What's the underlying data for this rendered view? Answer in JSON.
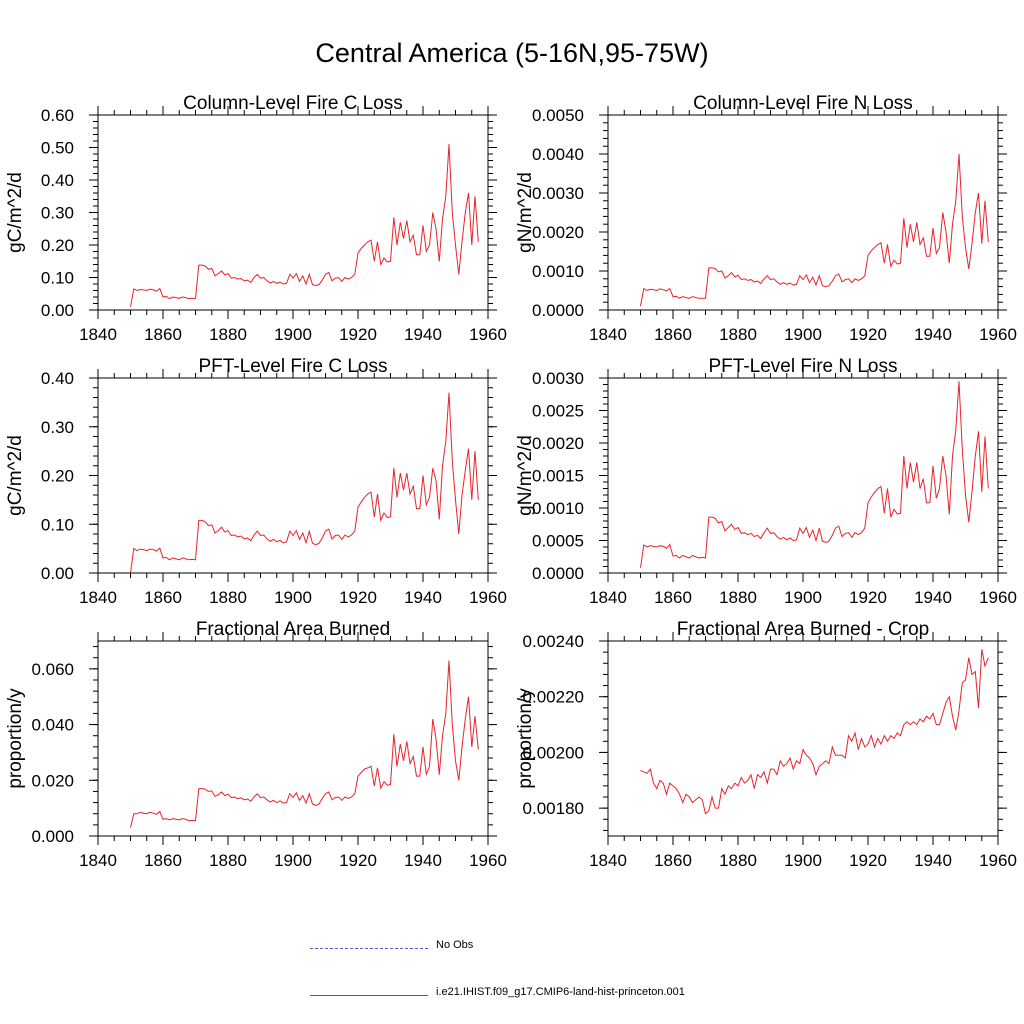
{
  "figure": {
    "title": "Central America (5-16N,95-75W)",
    "colors": {
      "model": "#e8232a",
      "obs": "#5a5acd",
      "axis": "#000000"
    }
  },
  "legend": [
    {
      "label": "No Obs",
      "style": "dashed",
      "color": "#5a5acd"
    },
    {
      "label": "i.e21.IHIST.f09_g17.CMIP6-land-hist-princeton.001",
      "style": "solid",
      "color": "#e8232a"
    }
  ],
  "chart_data": [
    {
      "type": "line",
      "title": "Column-Level Fire C Loss",
      "ylabel": "gC/m^2/d",
      "xlim": [
        1840,
        1960
      ],
      "ylim": [
        0,
        0.6
      ],
      "xticks": [
        "1840",
        "1860",
        "1880",
        "1900",
        "1920",
        "1940",
        "1960"
      ],
      "yticks": [
        {
          "v": 0.0,
          "label": "0.00"
        },
        {
          "v": 0.1,
          "label": "0.10"
        },
        {
          "v": 0.2,
          "label": "0.20"
        },
        {
          "v": 0.3,
          "label": "0.30"
        },
        {
          "v": 0.4,
          "label": "0.40"
        },
        {
          "v": 0.5,
          "label": "0.50"
        },
        {
          "v": 0.6,
          "label": "0.60"
        }
      ],
      "x_start": 1850,
      "values": [
        0.01,
        0.065,
        0.06,
        0.063,
        0.062,
        0.06,
        0.064,
        0.062,
        0.058,
        0.066,
        0.04,
        0.042,
        0.035,
        0.04,
        0.038,
        0.036,
        0.04,
        0.038,
        0.035,
        0.036,
        0.035,
        0.138,
        0.138,
        0.135,
        0.125,
        0.128,
        0.105,
        0.112,
        0.12,
        0.108,
        0.112,
        0.098,
        0.1,
        0.095,
        0.097,
        0.09,
        0.092,
        0.085,
        0.1,
        0.11,
        0.098,
        0.1,
        0.09,
        0.083,
        0.088,
        0.082,
        0.086,
        0.08,
        0.082,
        0.11,
        0.098,
        0.112,
        0.088,
        0.105,
        0.08,
        0.11,
        0.078,
        0.075,
        0.078,
        0.092,
        0.11,
        0.115,
        0.09,
        0.098,
        0.1,
        0.088,
        0.1,
        0.095,
        0.1,
        0.11,
        0.175,
        0.19,
        0.2,
        0.21,
        0.215,
        0.15,
        0.21,
        0.14,
        0.16,
        0.148,
        0.15,
        0.285,
        0.2,
        0.27,
        0.22,
        0.275,
        0.21,
        0.23,
        0.17,
        0.17,
        0.26,
        0.18,
        0.2,
        0.3,
        0.25,
        0.15,
        0.28,
        0.35,
        0.51,
        0.3,
        0.2,
        0.11,
        0.21,
        0.3,
        0.36,
        0.2,
        0.35,
        0.21
      ]
    },
    {
      "type": "line",
      "title": "Column-Level Fire N Loss",
      "ylabel": "gN/m^2/d",
      "xlim": [
        1840,
        1960
      ],
      "ylim": [
        0,
        0.005
      ],
      "xticks": [
        "1840",
        "1860",
        "1880",
        "1900",
        "1920",
        "1940",
        "1960"
      ],
      "yticks": [
        {
          "v": 0.0,
          "label": "0.0000"
        },
        {
          "v": 0.001,
          "label": "0.0010"
        },
        {
          "v": 0.002,
          "label": "0.0020"
        },
        {
          "v": 0.003,
          "label": "0.0030"
        },
        {
          "v": 0.004,
          "label": "0.0040"
        },
        {
          "v": 0.005,
          "label": "0.0050"
        }
      ],
      "x_start": 1850,
      "values": [
        0.0001,
        0.00055,
        0.0005,
        0.00053,
        0.00052,
        0.0005,
        0.00054,
        0.00052,
        0.00049,
        0.00055,
        0.00034,
        0.00035,
        0.0003,
        0.00034,
        0.00032,
        0.0003,
        0.00034,
        0.00032,
        0.0003,
        0.0003,
        0.0003,
        0.00108,
        0.00108,
        0.00106,
        0.00098,
        0.001,
        0.00082,
        0.00088,
        0.00096,
        0.00085,
        0.00089,
        0.00078,
        0.0008,
        0.00076,
        0.00078,
        0.00072,
        0.00074,
        0.00068,
        0.0008,
        0.00088,
        0.00078,
        0.0008,
        0.00072,
        0.00066,
        0.0007,
        0.00066,
        0.00069,
        0.00064,
        0.00066,
        0.00088,
        0.00078,
        0.0009,
        0.0007,
        0.00084,
        0.00064,
        0.00088,
        0.00062,
        0.0006,
        0.00062,
        0.00074,
        0.00088,
        0.00092,
        0.00072,
        0.00078,
        0.0008,
        0.0007,
        0.0008,
        0.00076,
        0.0008,
        0.00088,
        0.0014,
        0.00152,
        0.0016,
        0.00168,
        0.00172,
        0.0012,
        0.00168,
        0.00112,
        0.00128,
        0.00118,
        0.0012,
        0.00235,
        0.0016,
        0.0022,
        0.00175,
        0.00225,
        0.00168,
        0.00185,
        0.00138,
        0.00138,
        0.0021,
        0.00145,
        0.0016,
        0.0025,
        0.002,
        0.0012,
        0.0022,
        0.0028,
        0.004,
        0.0024,
        0.0016,
        0.00105,
        0.0017,
        0.0025,
        0.003,
        0.0017,
        0.0028,
        0.00175
      ]
    },
    {
      "type": "line",
      "title": "PFT-Level Fire C Loss",
      "ylabel": "gC/m^2/d",
      "xlim": [
        1840,
        1960
      ],
      "ylim": [
        0,
        0.4
      ],
      "xticks": [
        "1840",
        "1860",
        "1880",
        "1900",
        "1920",
        "1940",
        "1960"
      ],
      "yticks": [
        {
          "v": 0.0,
          "label": "0.00"
        },
        {
          "v": 0.1,
          "label": "0.10"
        },
        {
          "v": 0.2,
          "label": "0.20"
        },
        {
          "v": 0.3,
          "label": "0.30"
        },
        {
          "v": 0.4,
          "label": "0.40"
        }
      ],
      "x_start": 1850,
      "values": [
        0.0,
        0.05,
        0.046,
        0.049,
        0.048,
        0.046,
        0.049,
        0.048,
        0.045,
        0.051,
        0.031,
        0.032,
        0.027,
        0.031,
        0.029,
        0.027,
        0.031,
        0.029,
        0.027,
        0.028,
        0.027,
        0.108,
        0.108,
        0.105,
        0.097,
        0.099,
        0.082,
        0.087,
        0.094,
        0.084,
        0.087,
        0.077,
        0.078,
        0.074,
        0.076,
        0.07,
        0.072,
        0.066,
        0.078,
        0.086,
        0.077,
        0.078,
        0.07,
        0.065,
        0.069,
        0.064,
        0.067,
        0.062,
        0.064,
        0.086,
        0.077,
        0.087,
        0.069,
        0.082,
        0.062,
        0.086,
        0.061,
        0.058,
        0.061,
        0.072,
        0.086,
        0.09,
        0.07,
        0.077,
        0.078,
        0.069,
        0.078,
        0.074,
        0.078,
        0.086,
        0.135,
        0.146,
        0.155,
        0.162,
        0.166,
        0.115,
        0.162,
        0.108,
        0.123,
        0.114,
        0.115,
        0.215,
        0.155,
        0.205,
        0.17,
        0.205,
        0.162,
        0.178,
        0.132,
        0.132,
        0.2,
        0.14,
        0.155,
        0.215,
        0.19,
        0.11,
        0.22,
        0.27,
        0.37,
        0.23,
        0.15,
        0.08,
        0.16,
        0.21,
        0.255,
        0.15,
        0.25,
        0.15
      ]
    },
    {
      "type": "line",
      "title": "PFT-Level Fire N Loss",
      "ylabel": "gN/m^2/d",
      "xlim": [
        1840,
        1960
      ],
      "ylim": [
        0,
        0.003
      ],
      "xticks": [
        "1840",
        "1860",
        "1880",
        "1900",
        "1920",
        "1940",
        "1960"
      ],
      "yticks": [
        {
          "v": 0.0,
          "label": "0.0000"
        },
        {
          "v": 0.0005,
          "label": "0.0005"
        },
        {
          "v": 0.001,
          "label": "0.0010"
        },
        {
          "v": 0.0015,
          "label": "0.0015"
        },
        {
          "v": 0.002,
          "label": "0.0020"
        },
        {
          "v": 0.0025,
          "label": "0.0025"
        },
        {
          "v": 0.003,
          "label": "0.0030"
        }
      ],
      "x_start": 1850,
      "values": [
        8e-05,
        0.00043,
        0.0004,
        0.00042,
        0.00041,
        0.0004,
        0.00042,
        0.00041,
        0.00038,
        0.00044,
        0.00026,
        0.00027,
        0.00023,
        0.00027,
        0.00025,
        0.00023,
        0.00027,
        0.00025,
        0.00023,
        0.00024,
        0.00023,
        0.00086,
        0.00086,
        0.00084,
        0.00077,
        0.00079,
        0.00065,
        0.0007,
        0.00075,
        0.00067,
        0.0007,
        0.00061,
        0.00062,
        0.00059,
        0.00061,
        0.00056,
        0.00058,
        0.00053,
        0.00062,
        0.00069,
        0.00061,
        0.00062,
        0.00056,
        0.00052,
        0.00055,
        0.00051,
        0.00054,
        0.0005,
        0.00051,
        0.00069,
        0.00061,
        0.0007,
        0.00055,
        0.00066,
        0.0005,
        0.00069,
        0.00049,
        0.00047,
        0.00049,
        0.00058,
        0.00069,
        0.00072,
        0.00056,
        0.00061,
        0.00062,
        0.00055,
        0.00062,
        0.00059,
        0.00062,
        0.00069,
        0.00108,
        0.00117,
        0.00124,
        0.0013,
        0.00133,
        0.00092,
        0.0013,
        0.00086,
        0.00098,
        0.00091,
        0.00092,
        0.0018,
        0.0013,
        0.0017,
        0.0014,
        0.0017,
        0.0013,
        0.00145,
        0.00108,
        0.00108,
        0.00165,
        0.00115,
        0.0013,
        0.0018,
        0.0015,
        0.0009,
        0.0018,
        0.0022,
        0.00295,
        0.0019,
        0.0012,
        0.00078,
        0.00125,
        0.0018,
        0.00218,
        0.00125,
        0.0021,
        0.0013
      ]
    },
    {
      "type": "line",
      "title": "Fractional Area Burned",
      "ylabel": "proportion/y",
      "xlim": [
        1840,
        1960
      ],
      "ylim": [
        0,
        0.07
      ],
      "xticks": [
        "1840",
        "1860",
        "1880",
        "1900",
        "1920",
        "1940",
        "1960"
      ],
      "yticks": [
        {
          "v": 0.0,
          "label": "0.000"
        },
        {
          "v": 0.02,
          "label": "0.020"
        },
        {
          "v": 0.04,
          "label": "0.040"
        },
        {
          "v": 0.06,
          "label": "0.060"
        }
      ],
      "x_start": 1850,
      "values": [
        0.003,
        0.008,
        0.008,
        0.0085,
        0.0082,
        0.008,
        0.0085,
        0.0082,
        0.0078,
        0.0088,
        0.006,
        0.0062,
        0.0058,
        0.0062,
        0.006,
        0.0058,
        0.0062,
        0.006,
        0.0055,
        0.0056,
        0.0055,
        0.017,
        0.017,
        0.0168,
        0.016,
        0.0162,
        0.0142,
        0.0148,
        0.0158,
        0.0145,
        0.015,
        0.0138,
        0.014,
        0.0134,
        0.0137,
        0.013,
        0.0133,
        0.0125,
        0.014,
        0.0152,
        0.0138,
        0.014,
        0.013,
        0.0122,
        0.0128,
        0.012,
        0.0126,
        0.0118,
        0.012,
        0.0152,
        0.0138,
        0.0155,
        0.0128,
        0.0145,
        0.0118,
        0.0152,
        0.0115,
        0.011,
        0.0115,
        0.0135,
        0.0152,
        0.0158,
        0.013,
        0.0138,
        0.014,
        0.0128,
        0.014,
        0.0135,
        0.014,
        0.0152,
        0.0215,
        0.0228,
        0.024,
        0.0245,
        0.025,
        0.018,
        0.0245,
        0.0172,
        0.0195,
        0.0182,
        0.0185,
        0.0365,
        0.025,
        0.033,
        0.027,
        0.034,
        0.026,
        0.0285,
        0.0215,
        0.0215,
        0.032,
        0.0222,
        0.025,
        0.042,
        0.035,
        0.022,
        0.036,
        0.044,
        0.063,
        0.04,
        0.027,
        0.02,
        0.032,
        0.042,
        0.05,
        0.032,
        0.043,
        0.031
      ]
    },
    {
      "type": "line",
      "title": "Fractional Area Burned - Crop",
      "ylabel": "proportion/y",
      "xlim": [
        1840,
        1960
      ],
      "ylim": [
        0.0017,
        0.0024
      ],
      "xticks": [
        "1840",
        "1860",
        "1880",
        "1900",
        "1920",
        "1940",
        "1960"
      ],
      "yticks": [
        {
          "v": 0.0018,
          "label": "0.00180"
        },
        {
          "v": 0.002,
          "label": "0.00200"
        },
        {
          "v": 0.0022,
          "label": "0.00220"
        },
        {
          "v": 0.0024,
          "label": "0.00240"
        }
      ],
      "x_start": 1850,
      "values": [
        0.001935,
        0.00193,
        0.001925,
        0.00194,
        0.00189,
        0.00187,
        0.0019,
        0.00189,
        0.00185,
        0.00189,
        0.00188,
        0.00187,
        0.00185,
        0.00182,
        0.00185,
        0.00184,
        0.00182,
        0.00183,
        0.00184,
        0.00183,
        0.00178,
        0.00179,
        0.00184,
        0.0018,
        0.0018,
        0.00187,
        0.00185,
        0.00188,
        0.00187,
        0.00189,
        0.00188,
        0.00191,
        0.00189,
        0.0019,
        0.00192,
        0.00187,
        0.00192,
        0.00191,
        0.00193,
        0.00189,
        0.00194,
        0.00194,
        0.00192,
        0.00197,
        0.00195,
        0.00196,
        0.00198,
        0.00194,
        0.00197,
        0.00196,
        0.00201,
        0.00199,
        0.00198,
        0.00196,
        0.00192,
        0.00195,
        0.00196,
        0.00197,
        0.00196,
        0.00202,
        0.00199,
        0.00199,
        0.00199,
        0.00198,
        0.00206,
        0.00204,
        0.00207,
        0.00201,
        0.00205,
        0.00202,
        0.00203,
        0.00206,
        0.00202,
        0.00205,
        0.00203,
        0.00206,
        0.00204,
        0.00206,
        0.00205,
        0.00207,
        0.00206,
        0.0021,
        0.00211,
        0.0021,
        0.00211,
        0.0021,
        0.00212,
        0.00211,
        0.00213,
        0.00212,
        0.00214,
        0.0021,
        0.0021,
        0.00214,
        0.00218,
        0.0022,
        0.00213,
        0.00208,
        0.00215,
        0.00225,
        0.00226,
        0.00234,
        0.00228,
        0.00229,
        0.00216,
        0.00237,
        0.00231,
        0.00234
      ]
    }
  ]
}
